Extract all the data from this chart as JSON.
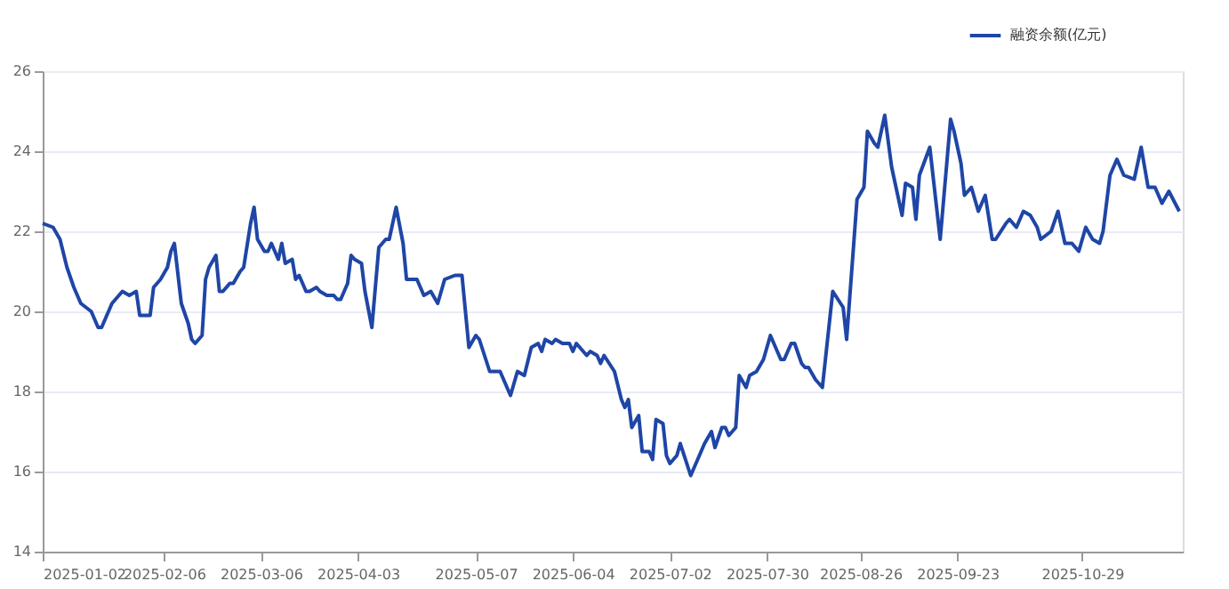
{
  "chart_data": {
    "type": "line",
    "legend": "top right",
    "grid": "y",
    "line_style": "solid",
    "xlim": [
      "2025-01-02",
      "2025-11-27"
    ],
    "xticks": [
      "2025-01-02",
      "2025-02-06",
      "2025-03-06",
      "2025-04-03",
      "2025-05-07",
      "2025-06-04",
      "2025-07-02",
      "2025-07-30",
      "2025-08-26",
      "2025-09-23",
      "2025-10-29"
    ],
    "ylim": [
      14,
      26
    ],
    "yticks": [
      14,
      16,
      18,
      20,
      22,
      24,
      26
    ],
    "x": [
      "2025-01-02",
      "2025-01-05",
      "2025-01-07",
      "2025-01-09",
      "2025-01-11",
      "2025-01-13",
      "2025-01-16",
      "2025-01-18",
      "2025-01-19",
      "2025-01-22",
      "2025-01-23",
      "2025-01-25",
      "2025-01-27",
      "2025-01-29",
      "2025-01-30",
      "2025-02-02",
      "2025-02-03",
      "2025-02-05",
      "2025-02-07",
      "2025-02-08",
      "2025-02-09",
      "2025-02-11",
      "2025-02-13",
      "2025-02-14",
      "2025-02-15",
      "2025-02-17",
      "2025-02-18",
      "2025-02-19",
      "2025-02-21",
      "2025-02-22",
      "2025-02-23",
      "2025-02-25",
      "2025-02-26",
      "2025-02-28",
      "2025-03-01",
      "2025-03-03",
      "2025-03-04",
      "2025-03-05",
      "2025-03-07",
      "2025-03-08",
      "2025-03-09",
      "2025-03-11",
      "2025-03-12",
      "2025-03-13",
      "2025-03-15",
      "2025-03-16",
      "2025-03-17",
      "2025-03-19",
      "2025-03-20",
      "2025-03-22",
      "2025-03-23",
      "2025-03-25",
      "2025-03-27",
      "2025-03-28",
      "2025-03-29",
      "2025-03-31",
      "2025-04-01",
      "2025-04-02",
      "2025-04-04",
      "2025-04-05",
      "2025-04-07",
      "2025-04-09",
      "2025-04-11",
      "2025-04-12",
      "2025-04-14",
      "2025-04-16",
      "2025-04-17",
      "2025-04-20",
      "2025-04-22",
      "2025-04-24",
      "2025-04-26",
      "2025-04-28",
      "2025-05-01",
      "2025-05-03",
      "2025-05-05",
      "2025-05-07",
      "2025-05-08",
      "2025-05-11",
      "2025-05-14",
      "2025-05-16",
      "2025-05-17",
      "2025-05-19",
      "2025-05-21",
      "2025-05-23",
      "2025-05-25",
      "2025-05-26",
      "2025-05-27",
      "2025-05-29",
      "2025-05-30",
      "2025-06-01",
      "2025-06-03",
      "2025-06-04",
      "2025-06-05",
      "2025-06-06",
      "2025-06-08",
      "2025-06-09",
      "2025-06-11",
      "2025-06-12",
      "2025-06-13",
      "2025-06-16",
      "2025-06-18",
      "2025-06-19",
      "2025-06-20",
      "2025-06-21",
      "2025-06-23",
      "2025-06-24",
      "2025-06-26",
      "2025-06-27",
      "2025-06-28",
      "2025-06-30",
      "2025-07-01",
      "2025-07-02",
      "2025-07-04",
      "2025-07-05",
      "2025-07-08",
      "2025-07-10",
      "2025-07-12",
      "2025-07-14",
      "2025-07-15",
      "2025-07-17",
      "2025-07-18",
      "2025-07-19",
      "2025-07-21",
      "2025-07-22",
      "2025-07-24",
      "2025-07-25",
      "2025-07-27",
      "2025-07-29",
      "2025-07-31",
      "2025-08-01",
      "2025-08-03",
      "2025-08-04",
      "2025-08-06",
      "2025-08-07",
      "2025-08-09",
      "2025-08-10",
      "2025-08-11",
      "2025-08-13",
      "2025-08-15",
      "2025-08-17",
      "2025-08-18",
      "2025-08-21",
      "2025-08-22",
      "2025-08-25",
      "2025-08-27",
      "2025-08-28",
      "2025-08-30",
      "2025-08-31",
      "2025-09-02",
      "2025-09-04",
      "2025-09-07",
      "2025-09-08",
      "2025-09-10",
      "2025-09-11",
      "2025-09-12",
      "2025-09-15",
      "2025-09-18",
      "2025-09-21",
      "2025-09-22",
      "2025-09-24",
      "2025-09-25",
      "2025-09-27",
      "2025-09-29",
      "2025-10-01",
      "2025-10-03",
      "2025-10-04",
      "2025-10-07",
      "2025-10-08",
      "2025-10-10",
      "2025-10-12",
      "2025-10-14",
      "2025-10-16",
      "2025-10-17",
      "2025-10-20",
      "2025-10-22",
      "2025-10-24",
      "2025-10-26",
      "2025-10-28",
      "2025-10-30",
      "2025-11-01",
      "2025-11-03",
      "2025-11-04",
      "2025-11-06",
      "2025-11-08",
      "2025-11-10",
      "2025-11-13",
      "2025-11-15",
      "2025-11-17",
      "2025-11-19",
      "2025-11-21",
      "2025-11-23",
      "2025-11-26"
    ],
    "series": [
      {
        "name": "融资余额(亿元)",
        "color": "#1f46a6",
        "values": [
          22.2,
          22.1,
          21.8,
          21.1,
          20.6,
          20.2,
          20.0,
          19.6,
          19.6,
          20.2,
          20.3,
          20.5,
          20.4,
          20.5,
          19.9,
          19.9,
          20.6,
          20.8,
          21.1,
          21.5,
          21.7,
          20.2,
          19.7,
          19.3,
          19.2,
          19.4,
          20.8,
          21.1,
          21.4,
          20.5,
          20.5,
          20.7,
          20.7,
          21.0,
          21.1,
          22.2,
          22.6,
          21.8,
          21.5,
          21.5,
          21.7,
          21.3,
          21.7,
          21.2,
          21.3,
          20.8,
          20.9,
          20.5,
          20.5,
          20.6,
          20.5,
          20.4,
          20.4,
          20.3,
          20.3,
          20.7,
          21.4,
          21.3,
          21.2,
          20.5,
          19.6,
          21.6,
          21.8,
          21.8,
          22.6,
          21.7,
          20.8,
          20.8,
          20.4,
          20.5,
          20.2,
          20.8,
          20.9,
          20.9,
          19.1,
          19.4,
          19.3,
          18.5,
          18.5,
          18.1,
          17.9,
          18.5,
          18.4,
          19.1,
          19.2,
          19.0,
          19.3,
          19.2,
          19.3,
          19.2,
          19.2,
          19.0,
          19.2,
          19.1,
          18.9,
          19.0,
          18.9,
          18.7,
          18.9,
          18.5,
          17.8,
          17.6,
          17.8,
          17.1,
          17.4,
          16.5,
          16.5,
          16.3,
          17.3,
          17.2,
          16.4,
          16.2,
          16.4,
          16.7,
          15.9,
          16.3,
          16.7,
          17.0,
          16.6,
          17.1,
          17.1,
          16.9,
          17.1,
          18.4,
          18.1,
          18.4,
          18.5,
          18.8,
          19.4,
          19.2,
          18.8,
          18.8,
          19.2,
          19.2,
          18.7,
          18.6,
          18.6,
          18.3,
          18.1,
          19.7,
          20.5,
          20.1,
          19.3,
          22.8,
          23.1,
          24.5,
          24.2,
          24.1,
          24.9,
          23.6,
          22.4,
          23.2,
          23.1,
          22.3,
          23.4,
          24.1,
          21.8,
          24.8,
          24.5,
          23.7,
          22.9,
          23.1,
          22.5,
          22.9,
          21.8,
          21.8,
          22.2,
          22.3,
          22.1,
          22.5,
          22.4,
          22.1,
          21.8,
          22.0,
          22.5,
          21.7,
          21.7,
          21.5,
          22.1,
          21.8,
          21.7,
          22.0,
          23.4,
          23.8,
          23.4,
          23.3,
          24.1,
          23.1,
          23.1,
          22.7,
          23.0,
          22.5
        ]
      }
    ]
  }
}
